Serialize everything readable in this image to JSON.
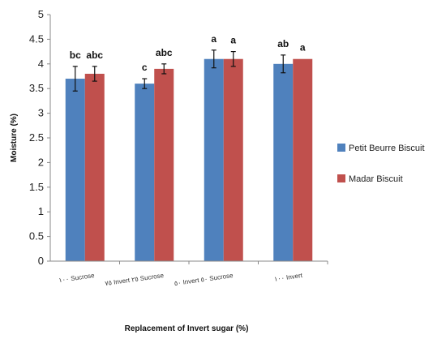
{
  "chart_data": {
    "type": "bar",
    "categories": [
      "١٠٠ Sucrose",
      "٧٥ Invert ٢٥ Sucrose",
      "٥٠ Invert ٥٠ Sucrose",
      "١٠٠ Invert"
    ],
    "series": [
      {
        "name": "Petit Beurre Biscuit",
        "color": "#4f81bd",
        "values": [
          3.7,
          3.6,
          4.1,
          4.0
        ],
        "errors": [
          0.25,
          0.1,
          0.18,
          0.18
        ],
        "labels": [
          "bc",
          "c",
          "a",
          "ab"
        ]
      },
      {
        "name": "Madar Biscuit",
        "color": "#c0504d",
        "values": [
          3.8,
          3.9,
          4.1,
          4.1
        ],
        "errors": [
          0.15,
          0.1,
          0.15,
          0.0
        ],
        "labels": [
          "abc",
          "abc",
          "a",
          "a"
        ]
      }
    ],
    "ylabel": "Moisture (%)",
    "xlabel": "Replacement of Invert sugar (%)",
    "ylim": [
      0,
      5
    ],
    "yticks": [
      "0",
      "0.5",
      "1",
      "1.5",
      "2",
      "2.5",
      "3",
      "3.5",
      "4",
      "4.5",
      "5"
    ],
    "grid": false,
    "legend": "right"
  }
}
